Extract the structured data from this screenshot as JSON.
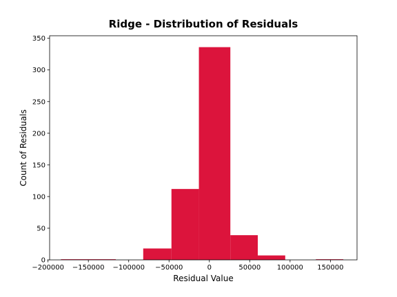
{
  "chart_data": {
    "type": "bar",
    "title": "Ridge - Distribution of Residuals",
    "xlabel": "Residual Value",
    "ylabel": "Count of Residuals",
    "xlim": [
      -198000,
      183000
    ],
    "ylim": [
      0,
      354
    ],
    "grid": false,
    "bar_color": "#dc143c",
    "bins": [
      {
        "x0": -184000,
        "x1": -150000,
        "count": 1
      },
      {
        "x0": -150000,
        "x1": -116000,
        "count": 1
      },
      {
        "x0": -116000,
        "x1": -82000,
        "count": 0
      },
      {
        "x0": -82000,
        "x1": -47000,
        "count": 18
      },
      {
        "x0": -47000,
        "x1": -13000,
        "count": 112
      },
      {
        "x0": -13000,
        "x1": 26000,
        "count": 336
      },
      {
        "x0": 26000,
        "x1": 60000,
        "count": 39
      },
      {
        "x0": 60000,
        "x1": 94000,
        "count": 7
      },
      {
        "x0": 94000,
        "x1": 132000,
        "count": 0
      },
      {
        "x0": 132000,
        "x1": 166000,
        "count": 1
      }
    ],
    "x_ticks": [
      {
        "value": -200000,
        "label": "−200000"
      },
      {
        "value": -150000,
        "label": "−150000"
      },
      {
        "value": -100000,
        "label": "−100000"
      },
      {
        "value": -50000,
        "label": "−50000"
      },
      {
        "value": 0,
        "label": "0"
      },
      {
        "value": 50000,
        "label": "50000"
      },
      {
        "value": 100000,
        "label": "100000"
      },
      {
        "value": 150000,
        "label": "150000"
      }
    ],
    "y_ticks": [
      {
        "value": 0,
        "label": "0"
      },
      {
        "value": 50,
        "label": "50"
      },
      {
        "value": 100,
        "label": "100"
      },
      {
        "value": 150,
        "label": "150"
      },
      {
        "value": 200,
        "label": "200"
      },
      {
        "value": 250,
        "label": "250"
      },
      {
        "value": 300,
        "label": "300"
      },
      {
        "value": 350,
        "label": "350"
      }
    ]
  }
}
